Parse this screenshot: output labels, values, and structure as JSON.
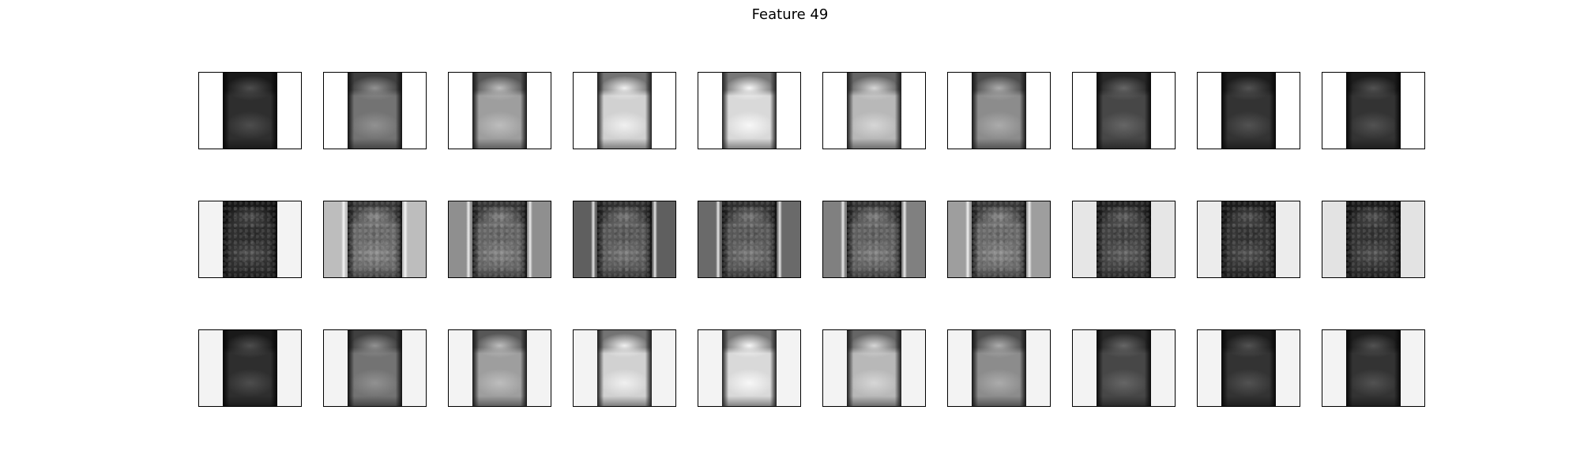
{
  "figure": {
    "title": "Feature 49",
    "rows": [
      {
        "kind": "top",
        "intensities": [
          0.18,
          0.45,
          0.62,
          0.82,
          0.85,
          0.72,
          0.55,
          0.28,
          0.2,
          0.2
        ],
        "background": [
          "#ffffff",
          "#ffffff",
          "#ffffff",
          "#ffffff",
          "#ffffff",
          "#ffffff",
          "#ffffff",
          "#ffffff",
          "#ffffff",
          "#ffffff"
        ]
      },
      {
        "kind": "middle",
        "intensities": [
          0.18,
          0.42,
          0.4,
          0.35,
          0.35,
          0.38,
          0.42,
          0.26,
          0.2,
          0.2
        ],
        "background": [
          "#f3f3f3",
          "#bdbdbd",
          "#8f8f8f",
          "#5f5f5f",
          "#6a6a6a",
          "#808080",
          "#9e9e9e",
          "#e6e6e6",
          "#ececec",
          "#e3e3e3"
        ]
      },
      {
        "kind": "bottom",
        "intensities": [
          0.18,
          0.45,
          0.62,
          0.82,
          0.85,
          0.72,
          0.55,
          0.28,
          0.2,
          0.2
        ],
        "background": [
          "#f3f3f3",
          "#f3f3f3",
          "#f3f3f3",
          "#f3f3f3",
          "#f3f3f3",
          "#f3f3f3",
          "#f3f3f3",
          "#f3f3f3",
          "#f3f3f3",
          "#f3f3f3"
        ]
      }
    ]
  }
}
